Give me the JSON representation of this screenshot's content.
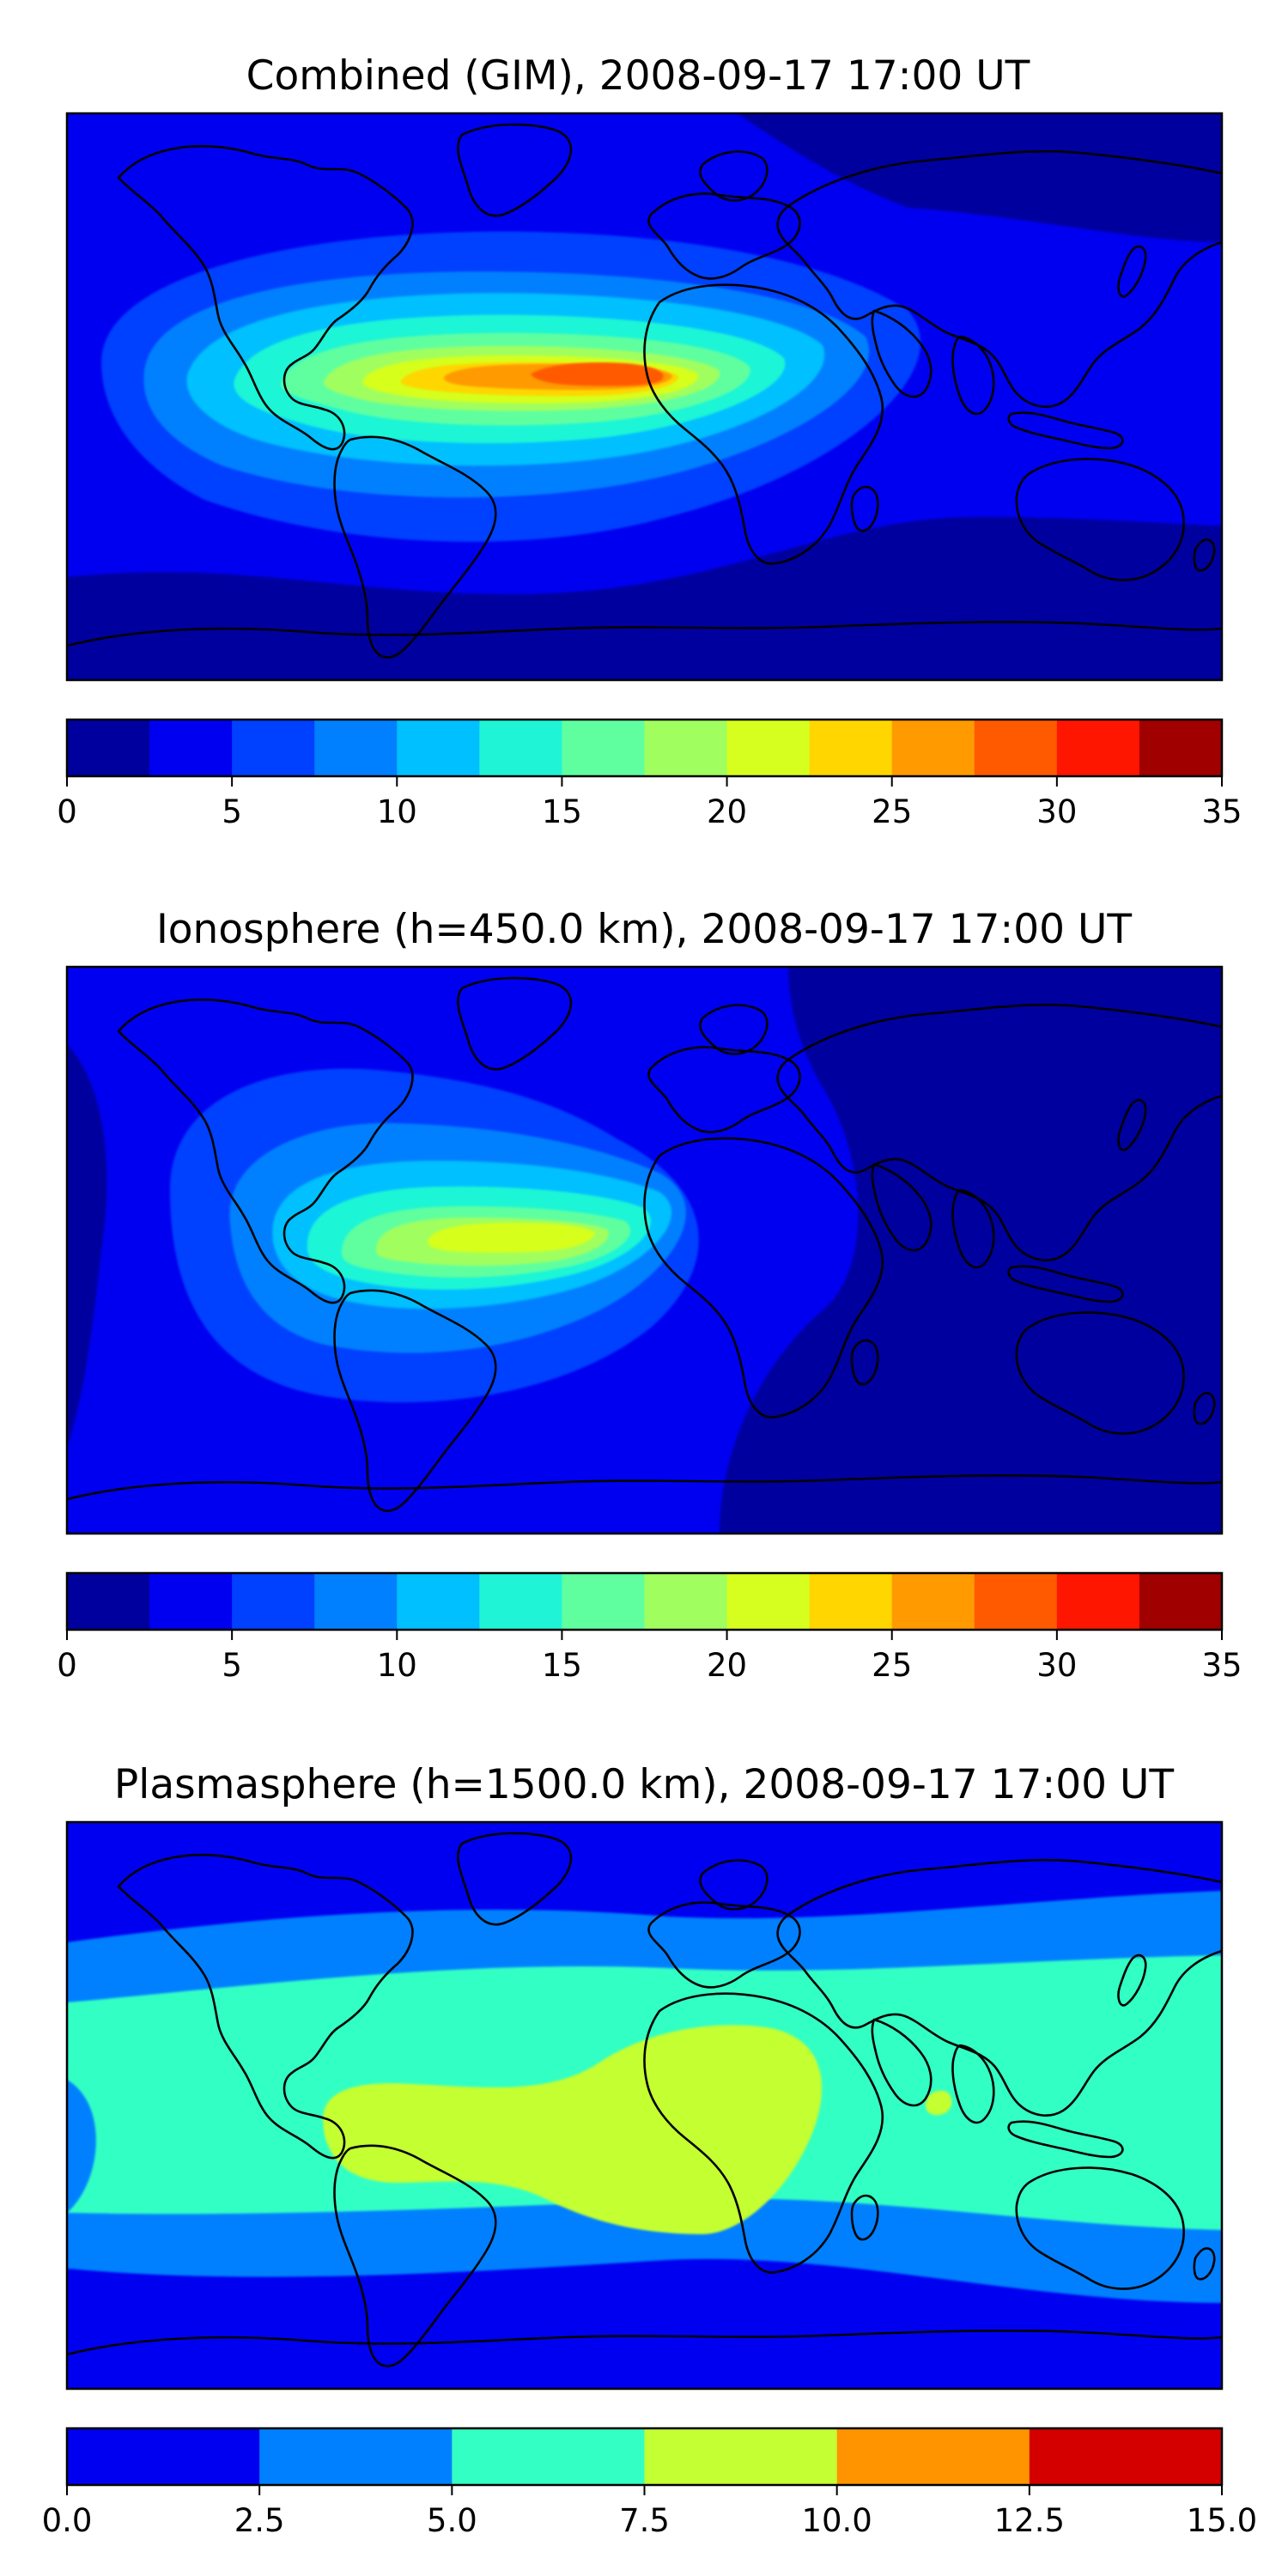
{
  "panels": [
    {
      "id": "combined",
      "title": "Combined (GIM), 2008-09-17 17:00 UT",
      "background_level": 1,
      "regions": [
        {
          "level": 0,
          "shape": "south-band"
        },
        {
          "level": 0,
          "shape": "north-east-band"
        },
        {
          "level": 2,
          "shape": "wide-lobe"
        },
        {
          "level": 3,
          "shape": "lobe"
        },
        {
          "level": 4,
          "shape": "lobe"
        },
        {
          "level": 5,
          "shape": "lobe"
        },
        {
          "level": 6,
          "shape": "lobe"
        },
        {
          "level": 7,
          "shape": "lobe"
        },
        {
          "level": 8,
          "shape": "lobe"
        },
        {
          "level": 9,
          "shape": "lobe"
        },
        {
          "level": 10,
          "shape": "core"
        },
        {
          "level": 11,
          "shape": "peak"
        }
      ],
      "colorbar": {
        "levels": [
          0,
          2.5,
          5,
          7.5,
          10,
          12.5,
          15,
          17.5,
          20,
          22.5,
          25,
          27.5,
          30,
          32.5,
          35
        ],
        "colors": [
          "#00009f",
          "#0000f0",
          "#0040ff",
          "#0080ff",
          "#00c0ff",
          "#1ff5d6",
          "#5fffa0",
          "#a0ff5f",
          "#d6ff1f",
          "#ffd600",
          "#ff9a00",
          "#ff5a00",
          "#ff1600",
          "#a00000"
        ],
        "ticks": [
          "0",
          "5",
          "10",
          "15",
          "20",
          "25",
          "30",
          "35"
        ],
        "tick_values": [
          0,
          5,
          10,
          15,
          20,
          25,
          30,
          35
        ]
      }
    },
    {
      "id": "ionosphere",
      "title": "Ionosphere  (h=450.0 km), 2008-09-17 17:00 UT",
      "background_level": 1,
      "regions": [
        {
          "level": 0,
          "shape": "east-half"
        },
        {
          "level": 0,
          "shape": "west-edge"
        },
        {
          "level": 2,
          "shape": "wide-lobe"
        },
        {
          "level": 3,
          "shape": "lobe"
        },
        {
          "level": 4,
          "shape": "lobe"
        },
        {
          "level": 5,
          "shape": "lobe"
        },
        {
          "level": 6,
          "shape": "lobe"
        },
        {
          "level": 7,
          "shape": "lobe"
        },
        {
          "level": 8,
          "shape": "core"
        }
      ],
      "colorbar": {
        "levels": [
          0,
          2.5,
          5,
          7.5,
          10,
          12.5,
          15,
          17.5,
          20,
          22.5,
          25,
          27.5,
          30,
          32.5,
          35
        ],
        "colors": [
          "#00009f",
          "#0000f0",
          "#0040ff",
          "#0080ff",
          "#00c0ff",
          "#1ff5d6",
          "#5fffa0",
          "#a0ff5f",
          "#d6ff1f",
          "#ffd600",
          "#ff9a00",
          "#ff5a00",
          "#ff1600",
          "#a00000"
        ],
        "ticks": [
          "0",
          "5",
          "10",
          "15",
          "20",
          "25",
          "30",
          "35"
        ],
        "tick_values": [
          0,
          5,
          10,
          15,
          20,
          25,
          30,
          35
        ]
      }
    },
    {
      "id": "plasmasphere",
      "title": "Plasmasphere (h=1500.0 km), 2008-09-17 17:00 UT",
      "background_level": 0,
      "regions": [
        {
          "level": 1,
          "shape": "band-wide"
        },
        {
          "level": 2,
          "shape": "band"
        },
        {
          "level": 3,
          "shape": "africa-blob"
        },
        {
          "level": 3,
          "shape": "sa-blob"
        },
        {
          "level": 3,
          "shape": "small-blob"
        }
      ],
      "colorbar": {
        "levels": [
          0,
          2.5,
          5,
          7.5,
          10,
          12.5,
          15
        ],
        "colors": [
          "#0000f0",
          "#0080ff",
          "#33ffc4",
          "#c4ff33",
          "#ff9400",
          "#d40000"
        ],
        "ticks": [
          "0.0",
          "2.5",
          "5.0",
          "7.5",
          "10.0",
          "12.5",
          "15.0"
        ],
        "tick_values": [
          0,
          2.5,
          5,
          7.5,
          10,
          12.5,
          15
        ]
      }
    }
  ]
}
